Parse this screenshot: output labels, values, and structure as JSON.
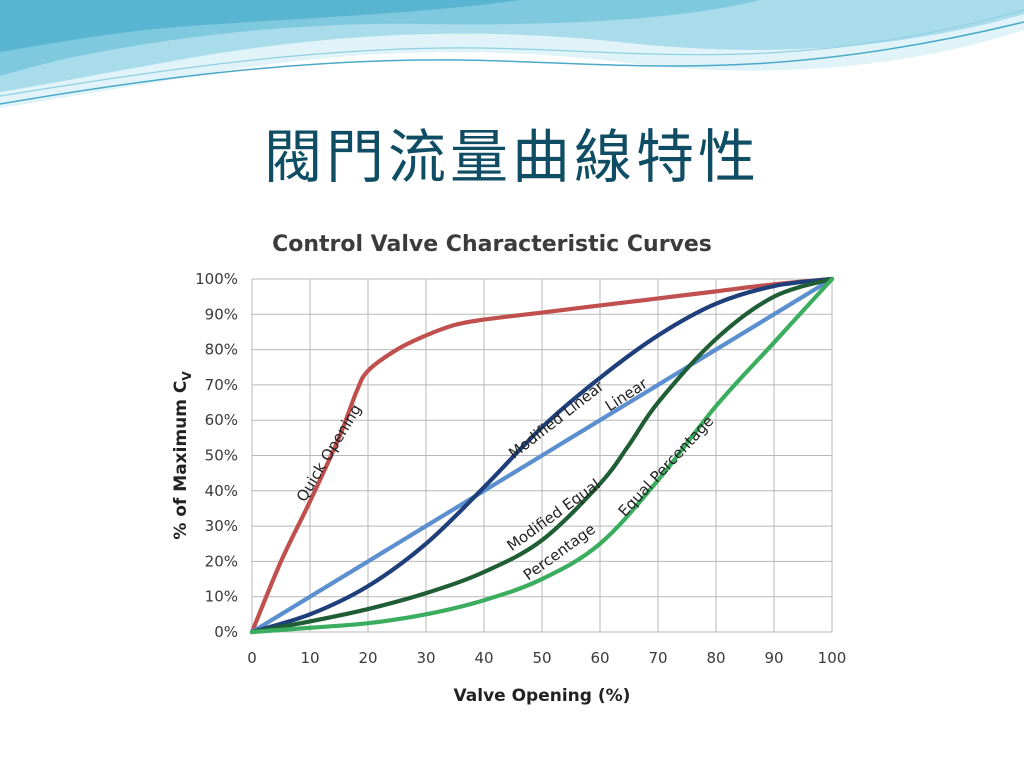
{
  "slide": {
    "title": "閥門流量曲線特性",
    "colors": {
      "title": "#0e4d63",
      "wave_light": "#bfe6f0",
      "wave_mid": "#7fcbe0",
      "wave_dark": "#3fa8c8"
    }
  },
  "chart_data": {
    "type": "line",
    "title": "Control Valve Characteristic Curves",
    "xlabel": "Valve Opening (%)",
    "ylabel_main": "% of Maximum C",
    "ylabel_sub": "V",
    "xlim": [
      0,
      100
    ],
    "ylim": [
      0,
      100
    ],
    "x_ticks": [
      0,
      10,
      20,
      30,
      40,
      50,
      60,
      70,
      80,
      90,
      100
    ],
    "y_ticks": [
      0,
      10,
      20,
      30,
      40,
      50,
      60,
      70,
      80,
      90,
      100
    ],
    "x_tick_labels": [
      "0",
      "10",
      "20",
      "30",
      "40",
      "50",
      "60",
      "70",
      "80",
      "90",
      "100"
    ],
    "y_tick_labels": [
      "0%",
      "10%",
      "20%",
      "30%",
      "40%",
      "50%",
      "60%",
      "70%",
      "80%",
      "90%",
      "100%"
    ],
    "grid": true,
    "series": [
      {
        "name": "Quick Opening",
        "color": "#c0504d",
        "x": [
          0,
          5,
          10,
          15,
          18,
          20,
          25,
          30,
          35,
          40,
          50,
          60,
          70,
          80,
          90,
          100
        ],
        "y": [
          0,
          20,
          37,
          55,
          68,
          74,
          80,
          84,
          87,
          88.5,
          90.5,
          92.5,
          94.5,
          96.5,
          98.5,
          100
        ]
      },
      {
        "name": "Linear",
        "color": "#5b8fcf",
        "x": [
          0,
          10,
          20,
          30,
          40,
          50,
          60,
          70,
          80,
          90,
          100
        ],
        "y": [
          0,
          10,
          20,
          30,
          40,
          50,
          60,
          70,
          80,
          90,
          100
        ]
      },
      {
        "name": "Modified Linear",
        "color": "#1f3f7a",
        "x": [
          0,
          10,
          20,
          30,
          40,
          50,
          60,
          70,
          80,
          90,
          100
        ],
        "y": [
          0,
          5,
          13,
          25,
          41,
          58,
          72,
          84,
          93,
          98,
          100
        ]
      },
      {
        "name": "Modified Equal Percentage",
        "color": "#1f5e34",
        "x": [
          0,
          10,
          20,
          30,
          40,
          50,
          60,
          65,
          70,
          80,
          90,
          100
        ],
        "y": [
          0,
          3,
          6.5,
          11,
          17,
          26,
          42,
          53,
          65,
          83,
          95,
          100
        ]
      },
      {
        "name": "Equal Percentage",
        "color": "#3aae5e",
        "x": [
          0,
          10,
          20,
          30,
          40,
          50,
          60,
          70,
          80,
          90,
          100
        ],
        "y": [
          0,
          1.2,
          2.5,
          5,
          9,
          15,
          25,
          43,
          64,
          82,
          100
        ]
      }
    ],
    "annotations": [
      {
        "text": "Quick Opening",
        "x": 14,
        "y": 50,
        "angle": -59
      },
      {
        "text": "Modified Linear",
        "x": 53,
        "y": 59,
        "angle": -38
      },
      {
        "text": "Linear",
        "x": 65,
        "y": 66,
        "angle": -33
      },
      {
        "text": "Modified Equal",
        "x": 52.5,
        "y": 32,
        "angle": -36
      },
      {
        "text": "Percentage",
        "x": 53.5,
        "y": 21.5,
        "angle": -36
      },
      {
        "text": "Equal Percentage",
        "x": 72,
        "y": 46,
        "angle": -47
      }
    ]
  }
}
